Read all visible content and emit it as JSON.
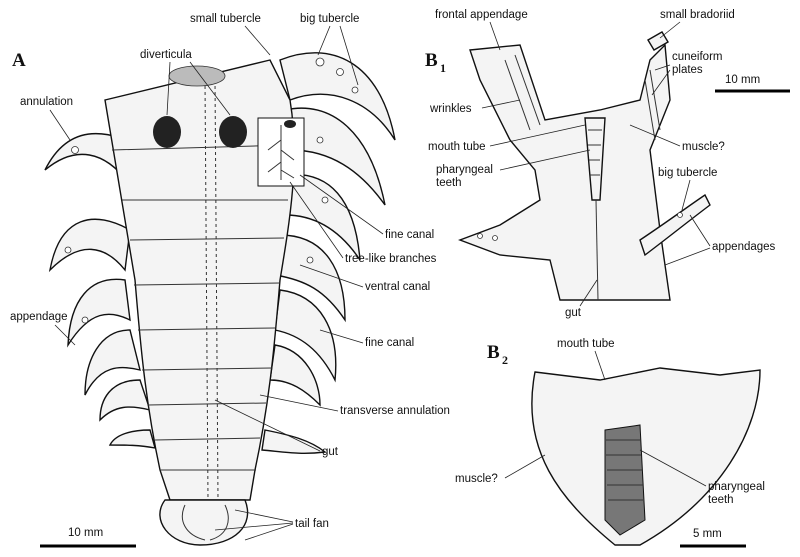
{
  "panels": [
    {
      "label": "A",
      "labels": [
        {
          "text": "small tubercle"
        },
        {
          "text": "big tubercle"
        },
        {
          "text": "diverticula"
        },
        {
          "text": "annulation"
        },
        {
          "text": "fine canal"
        },
        {
          "text": "tree-like branches"
        },
        {
          "text": "ventral canal"
        },
        {
          "text": "appendage"
        },
        {
          "text": "fine canal"
        },
        {
          "text": "transverse annulation"
        },
        {
          "text": "gut"
        },
        {
          "text": "tail fan"
        }
      ],
      "scale_bar": "10 mm"
    },
    {
      "label": "B",
      "subscript": "1",
      "labels": [
        {
          "text": "frontal appendage"
        },
        {
          "text": "small bradoriid"
        },
        {
          "lines": [
            "cuneiform",
            "plates"
          ]
        },
        {
          "text": "wrinkles"
        },
        {
          "text": "mouth tube"
        },
        {
          "text": "muscle?"
        },
        {
          "lines": [
            "pharyngeal",
            "teeth"
          ]
        },
        {
          "text": "big tubercle"
        },
        {
          "text": "appendages"
        },
        {
          "text": "gut"
        }
      ],
      "scale_bar": "10 mm"
    },
    {
      "label": "B",
      "subscript": "2",
      "labels": [
        {
          "text": "mouth tube"
        },
        {
          "text": "muscle?"
        },
        {
          "lines": [
            "pharyngeal",
            "teeth"
          ]
        }
      ],
      "scale_bar": "5 mm"
    }
  ]
}
